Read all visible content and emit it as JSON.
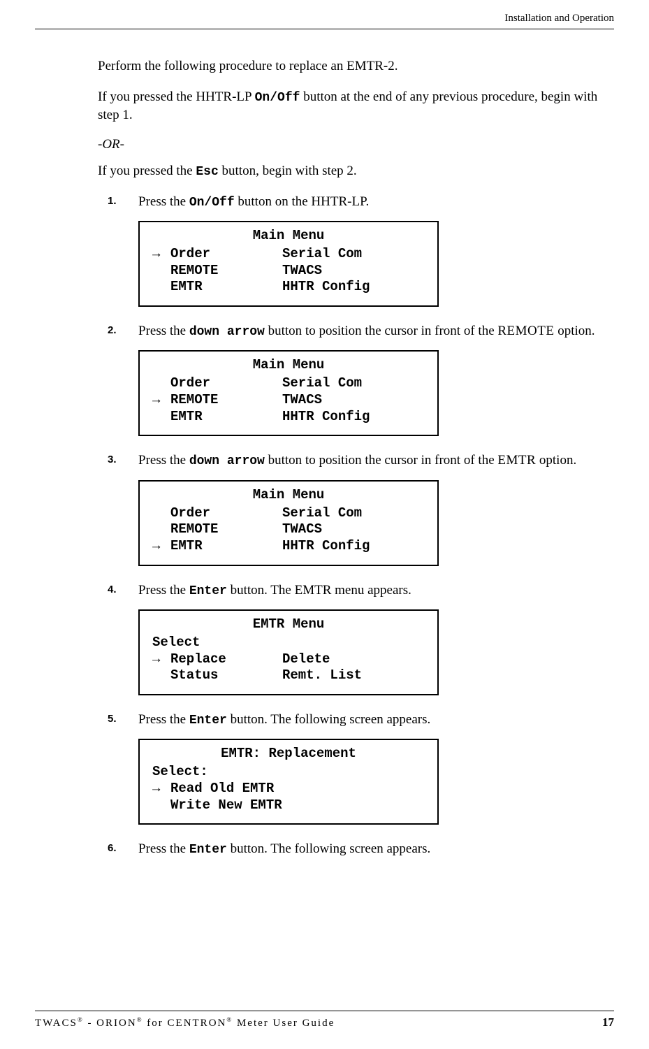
{
  "header": {
    "section": "Installation and Operation"
  },
  "intro": {
    "p1": "Perform the following procedure to replace an EMTR-2.",
    "p2_before": "If you pressed the HHTR-LP ",
    "p2_btn": "On/Off",
    "p2_after": " button at the end of any previous procedure, begin with step 1.",
    "or": "-OR-",
    "p3_before": "If you pressed the ",
    "p3_btn": "Esc",
    "p3_after": " button, begin with step 2."
  },
  "steps": {
    "s1": {
      "num": "1.",
      "before": "Press the ",
      "btn": "On/Off",
      "after": " button on the HHTR-LP."
    },
    "s2": {
      "num": "2.",
      "before": "Press the ",
      "btn": "down arrow",
      "mid": " button to position the cursor in front of the ",
      "opt": "REMOTE",
      "after": " option."
    },
    "s3": {
      "num": "3.",
      "before": "Press the ",
      "btn": "down arrow",
      "mid": " button to position the cursor in front of the ",
      "opt": "EMTR",
      "after": " option."
    },
    "s4": {
      "num": "4.",
      "before": "Press the ",
      "btn": "Enter",
      "after": " button. The EMTR menu appears."
    },
    "s5": {
      "num": "5.",
      "before": "Press the ",
      "btn": "Enter",
      "after": " button. The following screen appears."
    },
    "s6": {
      "num": "6.",
      "before": "Press the ",
      "btn": "Enter",
      "after": " button. The following screen appears."
    }
  },
  "arrow": "→",
  "menus": {
    "main": {
      "title": "Main Menu",
      "items": {
        "order": "Order",
        "remote": "REMOTE",
        "emtr": "EMTR",
        "serial": "Serial Com",
        "twacs": "TWACS",
        "hhtr": "HHTR Config"
      }
    },
    "emtr_menu": {
      "title": "EMTR Menu",
      "select": "Select",
      "replace": "Replace",
      "status": "Status",
      "delete": "Delete",
      "remt": "Remt. List"
    },
    "emtr_repl": {
      "title": "EMTR: Replacement",
      "select": "Select:",
      "read": "Read Old EMTR",
      "write": "Write New EMTR"
    }
  },
  "footer": {
    "title_a": "TWACS",
    "title_b": " - ORION",
    "title_c": " for CENTRON",
    "title_d": " Meter User Guide",
    "reg": "®",
    "page": "17"
  }
}
